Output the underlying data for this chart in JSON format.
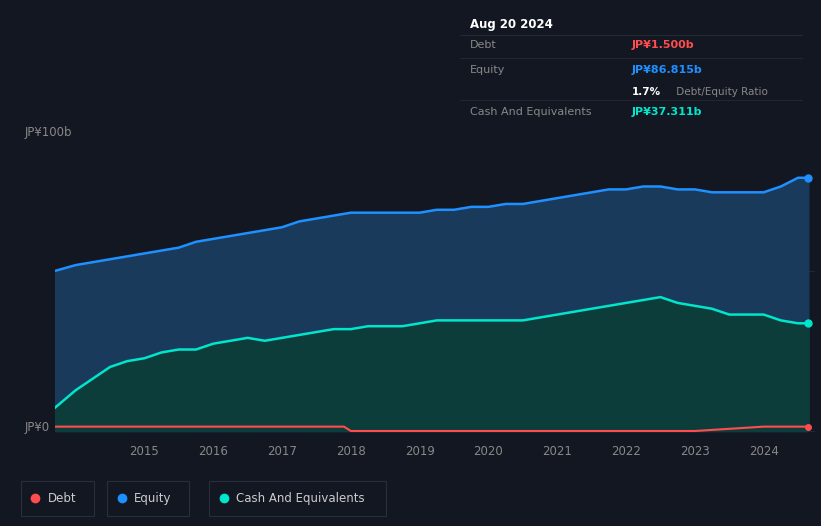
{
  "bg_color": "#131722",
  "plot_bg_color": "#131722",
  "title_label": "JP¥100b",
  "zero_label": "JP¥0",
  "equity_color": "#1e90ff",
  "equity_fill": "#1a3a5c",
  "cash_color": "#00e5cc",
  "cash_fill": "#0d3d3a",
  "debt_color": "#ff4d4d",
  "tooltip_date": "Aug 20 2024",
  "tooltip_debt_value": "JP¥1.500b",
  "tooltip_equity_value": "JP¥86.815b",
  "tooltip_cash_label": "Cash And Equivalents",
  "tooltip_cash_value": "JP¥37.311b",
  "legend_items": [
    "Debt",
    "Equity",
    "Cash And Equivalents"
  ],
  "legend_colors": [
    "#ff4d4d",
    "#1e90ff",
    "#00e5cc"
  ],
  "equity_x": [
    2013.7,
    2014.0,
    2014.25,
    2014.5,
    2014.75,
    2015.0,
    2015.25,
    2015.5,
    2015.75,
    2016.0,
    2016.25,
    2016.5,
    2016.75,
    2017.0,
    2017.25,
    2017.5,
    2017.75,
    2018.0,
    2018.25,
    2018.5,
    2018.75,
    2019.0,
    2019.25,
    2019.5,
    2019.75,
    2020.0,
    2020.25,
    2020.5,
    2020.75,
    2021.0,
    2021.25,
    2021.5,
    2021.75,
    2022.0,
    2022.25,
    2022.5,
    2022.75,
    2023.0,
    2023.25,
    2023.5,
    2023.75,
    2024.0,
    2024.25,
    2024.5,
    2024.65
  ],
  "equity_y": [
    55,
    57,
    58,
    59,
    60,
    61,
    62,
    63,
    65,
    66,
    67,
    68,
    69,
    70,
    72,
    73,
    74,
    75,
    75,
    75,
    75,
    75,
    76,
    76,
    77,
    77,
    78,
    78,
    79,
    80,
    81,
    82,
    83,
    83,
    84,
    84,
    83,
    83,
    82,
    82,
    82,
    82,
    84,
    87,
    87
  ],
  "cash_x": [
    2013.7,
    2014.0,
    2014.25,
    2014.5,
    2014.75,
    2015.0,
    2015.25,
    2015.5,
    2015.75,
    2016.0,
    2016.25,
    2016.5,
    2016.75,
    2017.0,
    2017.25,
    2017.5,
    2017.75,
    2018.0,
    2018.25,
    2018.5,
    2018.75,
    2019.0,
    2019.25,
    2019.5,
    2019.75,
    2020.0,
    2020.25,
    2020.5,
    2020.75,
    2021.0,
    2021.25,
    2021.5,
    2021.75,
    2022.0,
    2022.25,
    2022.5,
    2022.75,
    2023.0,
    2023.25,
    2023.5,
    2023.75,
    2024.0,
    2024.25,
    2024.5,
    2024.65
  ],
  "cash_y": [
    8,
    14,
    18,
    22,
    24,
    25,
    27,
    28,
    28,
    30,
    31,
    32,
    31,
    32,
    33,
    34,
    35,
    35,
    36,
    36,
    36,
    37,
    38,
    38,
    38,
    38,
    38,
    38,
    39,
    40,
    41,
    42,
    43,
    44,
    45,
    46,
    44,
    43,
    42,
    40,
    40,
    40,
    38,
    37,
    37
  ],
  "debt_x": [
    2013.7,
    2014.0,
    2014.25,
    2014.5,
    2015.0,
    2016.0,
    2017.0,
    2017.9,
    2018.0,
    2018.1,
    2019.0,
    2020.0,
    2021.0,
    2022.0,
    2023.0,
    2024.0,
    2024.65
  ],
  "debt_y": [
    1.5,
    1.5,
    1.5,
    1.5,
    1.5,
    1.5,
    1.5,
    1.5,
    0.0,
    0.0,
    0.0,
    0.0,
    0.0,
    0.0,
    0.0,
    1.5,
    1.5
  ],
  "y_min": -3,
  "y_max": 100,
  "x_min": 2013.7,
  "x_max": 2024.75
}
